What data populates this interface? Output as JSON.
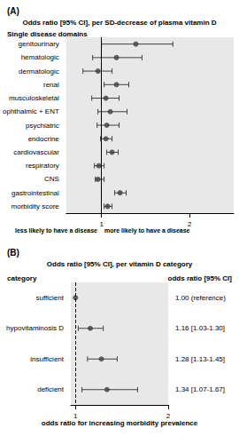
{
  "chart_data": [
    {
      "type": "scatter",
      "panel": "(A)",
      "title": "Odds ratio [95% CI], per SD-decrease of plasma vitamin D",
      "subtitle": "Single disease domains",
      "orientation": "horizontal",
      "categories": [
        "genitourinary",
        "hematologic",
        "dermatologic",
        "renal",
        "musculoskeletal",
        "ophthalmic + ENT",
        "psychiatric",
        "endocrine",
        "cardiovascular",
        "respiratory",
        "CNS",
        "gastrointestinal",
        "morbidity score"
      ],
      "values": [
        1.39,
        1.17,
        0.96,
        1.17,
        1.05,
        1.1,
        1.06,
        1.05,
        1.12,
        0.97,
        0.96,
        1.21,
        1.07
      ],
      "ci_lower": [
        1.0,
        0.9,
        0.79,
        1.03,
        0.89,
        0.96,
        0.95,
        0.99,
        1.06,
        0.92,
        0.93,
        1.15,
        1.03
      ],
      "ci_upper": [
        1.81,
        1.46,
        1.12,
        1.31,
        1.2,
        1.29,
        1.2,
        1.12,
        1.19,
        1.03,
        1.03,
        1.28,
        1.12
      ],
      "xlim": [
        0.6,
        2.5
      ],
      "xticks": [
        1,
        2
      ],
      "reference_line": 1,
      "annotations": [
        "less likely to have a disease",
        "more likely to have a disease"
      ],
      "color": "#404040",
      "marker": "circle",
      "grid": false
    },
    {
      "type": "scatter",
      "panel": "(B)",
      "title": "Odds ratio [95% CI], per vitamin D category",
      "category_header": "category",
      "value_header": "odds ratio [95% CI]",
      "xlabel": "odds ratio for increasing morbidity prevalence",
      "orientation": "horizontal",
      "categories": [
        "sufficient",
        "hypovitaminosis D",
        "insufficient",
        "deficient"
      ],
      "values": [
        1.0,
        1.16,
        1.28,
        1.34
      ],
      "value_labels": [
        "1.00 (reference)",
        "1.16 [1.03-1.30]",
        "1.28 [1.13-1.45]",
        "1.34 [1.07-1.67]"
      ],
      "ci_lower": [
        null,
        1.03,
        1.13,
        1.07
      ],
      "ci_upper": [
        null,
        1.3,
        1.45,
        1.67
      ],
      "xlim": [
        0.95,
        2
      ],
      "xticks": [
        1,
        2
      ],
      "reference_line": 1,
      "color": "#404040",
      "marker": "circle",
      "grid": false
    }
  ]
}
